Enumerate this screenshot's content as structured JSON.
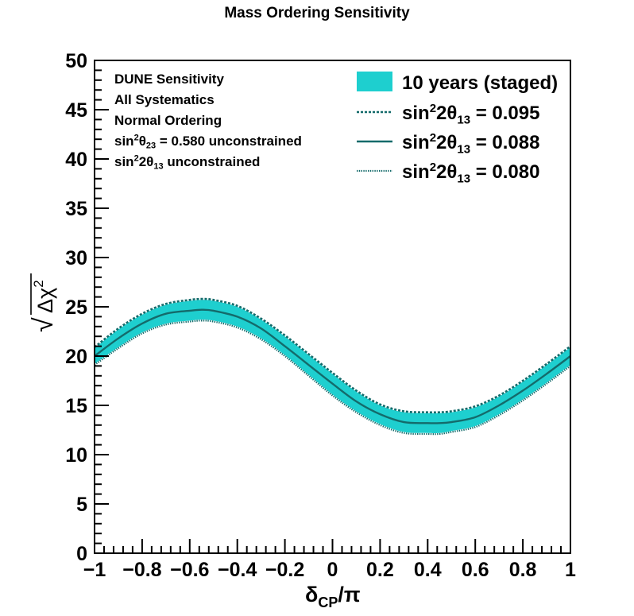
{
  "chart_data": {
    "type": "line",
    "title": "Mass Ordering Sensitivity",
    "xlabel": {
      "main": "δ",
      "sub": "CP",
      "tail": "/π"
    },
    "ylabel": {
      "root": "√",
      "main": "Δχ",
      "sup": "2"
    },
    "xlim": [
      -1,
      1
    ],
    "ylim": [
      0,
      50
    ],
    "x_ticks": [
      -1,
      -0.8,
      -0.6,
      -0.4,
      -0.2,
      0,
      0.2,
      0.4,
      0.6,
      0.8,
      1
    ],
    "x_tick_labels": [
      "−1",
      "−0.8",
      "−0.6",
      "−0.4",
      "−0.2",
      "0",
      "0.2",
      "0.4",
      "0.6",
      "0.8",
      "1"
    ],
    "y_ticks": [
      0,
      5,
      10,
      15,
      20,
      25,
      30,
      35,
      40,
      45,
      50
    ],
    "y_tick_labels": [
      "0",
      "5",
      "10",
      "15",
      "20",
      "25",
      "30",
      "35",
      "40",
      "45",
      "50"
    ],
    "grid": false,
    "legend_position": "top-right",
    "annotation_lines": [
      {
        "text": "DUNE Sensitivity"
      },
      {
        "text": "All Systematics"
      },
      {
        "text": "Normal Ordering"
      },
      {
        "parts": [
          "sin",
          "2",
          "θ",
          "23",
          " = 0.580 unconstrained"
        ]
      },
      {
        "parts": [
          "sin",
          "2",
          "2θ",
          "13",
          " unconstrained"
        ]
      }
    ],
    "legend": [
      {
        "label": "10 years (staged)",
        "style": "band"
      },
      {
        "parts": [
          "sin",
          "2",
          "2θ",
          "13",
          " = 0.095"
        ],
        "style": "dotted"
      },
      {
        "parts": [
          "sin",
          "2",
          "2θ",
          "13",
          " = 0.088"
        ],
        "style": "solid"
      },
      {
        "parts": [
          "sin",
          "2",
          "2θ",
          "13",
          " = 0.080"
        ],
        "style": "fine-dotted"
      }
    ],
    "x": [
      -1.0,
      -0.9,
      -0.8,
      -0.7,
      -0.6,
      -0.55,
      -0.5,
      -0.4,
      -0.3,
      -0.2,
      -0.1,
      0.0,
      0.1,
      0.2,
      0.3,
      0.4,
      0.45,
      0.5,
      0.6,
      0.7,
      0.8,
      0.9,
      1.0
    ],
    "series": [
      {
        "name": "10 years (staged)",
        "kind": "band",
        "upper": [
          20.8,
          22.7,
          24.2,
          25.2,
          25.6,
          25.7,
          25.6,
          25.0,
          23.7,
          22.0,
          20.1,
          18.2,
          16.4,
          15.0,
          14.3,
          14.2,
          14.2,
          14.3,
          14.8,
          15.9,
          17.4,
          19.1,
          20.9
        ],
        "lower": [
          19.2,
          20.9,
          22.4,
          23.3,
          23.6,
          23.7,
          23.6,
          23.0,
          21.8,
          20.1,
          18.1,
          16.1,
          14.4,
          13.1,
          12.3,
          12.2,
          12.2,
          12.4,
          12.9,
          14.1,
          15.6,
          17.3,
          19.1
        ]
      },
      {
        "name": "sin²2θ₁₃ = 0.095",
        "kind": "dotted",
        "values": [
          20.9,
          22.8,
          24.3,
          25.3,
          25.7,
          25.8,
          25.7,
          25.1,
          23.8,
          22.1,
          20.2,
          18.3,
          16.5,
          15.1,
          14.4,
          14.3,
          14.3,
          14.4,
          14.9,
          16.0,
          17.5,
          19.2,
          21.0
        ]
      },
      {
        "name": "sin²2θ₁₃ = 0.088",
        "kind": "solid",
        "values": [
          20.0,
          21.8,
          23.3,
          24.3,
          24.6,
          24.7,
          24.6,
          24.0,
          22.8,
          21.0,
          19.1,
          17.2,
          15.4,
          14.1,
          13.3,
          13.2,
          13.2,
          13.3,
          13.8,
          15.0,
          16.5,
          18.2,
          20.0
        ]
      },
      {
        "name": "sin²2θ₁₃ = 0.080",
        "kind": "fine-dotted",
        "values": [
          19.1,
          20.8,
          22.3,
          23.2,
          23.5,
          23.6,
          23.5,
          22.9,
          21.7,
          20.0,
          18.0,
          16.0,
          14.3,
          13.0,
          12.2,
          12.1,
          12.1,
          12.3,
          12.8,
          14.0,
          15.5,
          17.2,
          19.0
        ]
      }
    ],
    "colors": {
      "band": "#1ecfcf",
      "line": "#146b6b",
      "frame": "#000000"
    }
  }
}
